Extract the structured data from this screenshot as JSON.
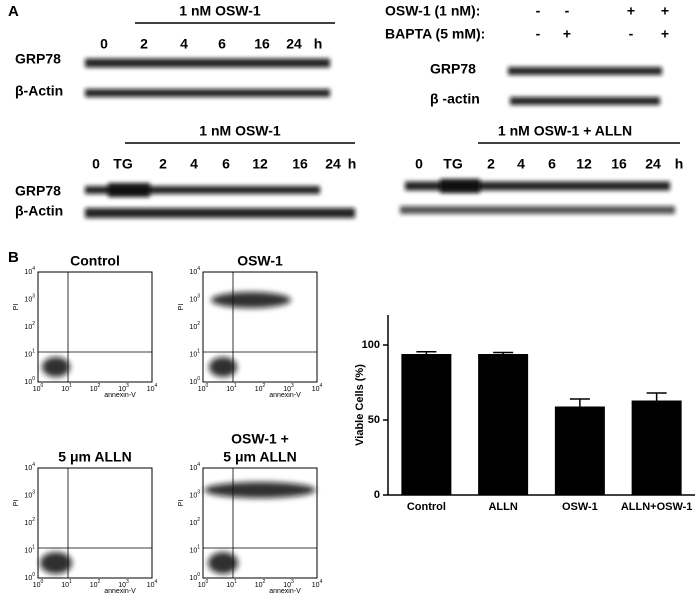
{
  "panel_a": {
    "label": "A",
    "blot1": {
      "header": "1 nM OSW-1",
      "lanes": [
        "0",
        "2",
        "4",
        "6",
        "16",
        "24",
        "h"
      ],
      "rows": [
        "GRP78",
        "β-Actin"
      ]
    },
    "blot2": {
      "conditions": [
        {
          "label": "OSW-1 (1 nM):",
          "signs": [
            "-",
            "-",
            "+",
            "+"
          ]
        },
        {
          "label": "BAPTA  (5 mM):",
          "signs": [
            "-",
            "+",
            "-",
            "+"
          ]
        }
      ],
      "rows": [
        "GRP78",
        "β -actin"
      ]
    },
    "blot3": {
      "header": "1 nM OSW-1",
      "lanes": [
        "0",
        "TG",
        "2",
        "4",
        "6",
        "12",
        "16",
        "24",
        "h"
      ],
      "rows": [
        "GRP78",
        "β-Actin"
      ]
    },
    "blot4": {
      "header": "1 nM OSW-1 + ALLN",
      "lanes": [
        "0",
        "TG",
        "2",
        "4",
        "6",
        "12",
        "16",
        "24",
        "h"
      ]
    }
  },
  "panel_b": {
    "label": "B",
    "flow": {
      "x_label": "annexin-V",
      "y_label": "PI",
      "log_base": "10",
      "log_exponents": [
        "0",
        "1",
        "2",
        "3",
        "4"
      ],
      "plots": [
        {
          "title": [
            "Control"
          ]
        },
        {
          "title": [
            "OSW-1"
          ]
        },
        {
          "title": [
            "5 μm ALLN"
          ]
        },
        {
          "title": [
            "OSW-1 +",
            "5 μm ALLN"
          ]
        }
      ]
    },
    "bar_chart": {
      "type": "bar",
      "y_label": "Viable Cells (%)",
      "categories": [
        "Control",
        "ALLN",
        "OSW-1",
        "ALLN+OSW-1"
      ],
      "values": [
        94,
        94,
        59,
        63
      ],
      "errors": [
        1.5,
        1,
        5,
        5
      ],
      "color": "#000000",
      "ylim": [
        0,
        120
      ],
      "yticks": [
        0,
        50,
        100
      ]
    }
  }
}
